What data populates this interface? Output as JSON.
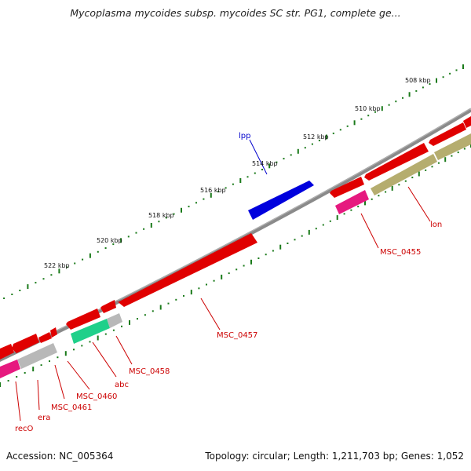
{
  "title": "Mycoplasma mycoides subsp. mycoides SC str. PG1, complete ge...",
  "footer": {
    "accession": "Accession: NC_005364",
    "summary": "Topology: circular; Length: 1,211,703 bp; Genes: 1,052"
  },
  "scale": {
    "tick_labels": [
      "508 kbp",
      "510 kbp",
      "512 kbp",
      "514 kbp",
      "516 kbp",
      "518 kbp",
      "520 kbp",
      "522 kbp"
    ]
  },
  "genes": [
    {
      "label": "lpp"
    },
    {
      "label": "lon"
    },
    {
      "label": "MSC_0455"
    },
    {
      "label": "MSC_0457"
    },
    {
      "label": "MSC_0458"
    },
    {
      "label": "abc"
    },
    {
      "label": "MSC_0460"
    },
    {
      "label": "MSC_0461"
    },
    {
      "label": "era"
    },
    {
      "label": "recO"
    }
  ],
  "colors": {
    "cds_forward": "#e00000",
    "cds_reverse": "#e00000",
    "lpp": "#0000dd",
    "pink": "#e6197f",
    "green": "#1fd08a",
    "gray": "#b8b8b8",
    "olive": "#b5ad6f",
    "backbone": "#808080",
    "ticks": "#1a7a1a"
  }
}
